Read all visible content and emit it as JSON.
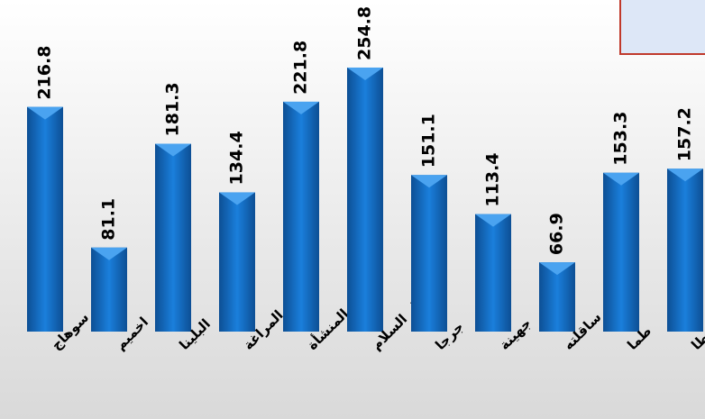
{
  "chart_data": {
    "type": "bar",
    "categories": [
      "سوهاج",
      "اخميم",
      "البلينا",
      "المراغة",
      "المنشأة",
      "دار السلام",
      "جرجا",
      "جهينة",
      "ساقلته",
      "طما",
      "طهطا"
    ],
    "values": [
      216.8,
      81.1,
      181.3,
      134.4,
      221.8,
      254.8,
      151.1,
      113.4,
      66.9,
      153.3,
      157.2
    ],
    "color": "#1a73c9"
  }
}
